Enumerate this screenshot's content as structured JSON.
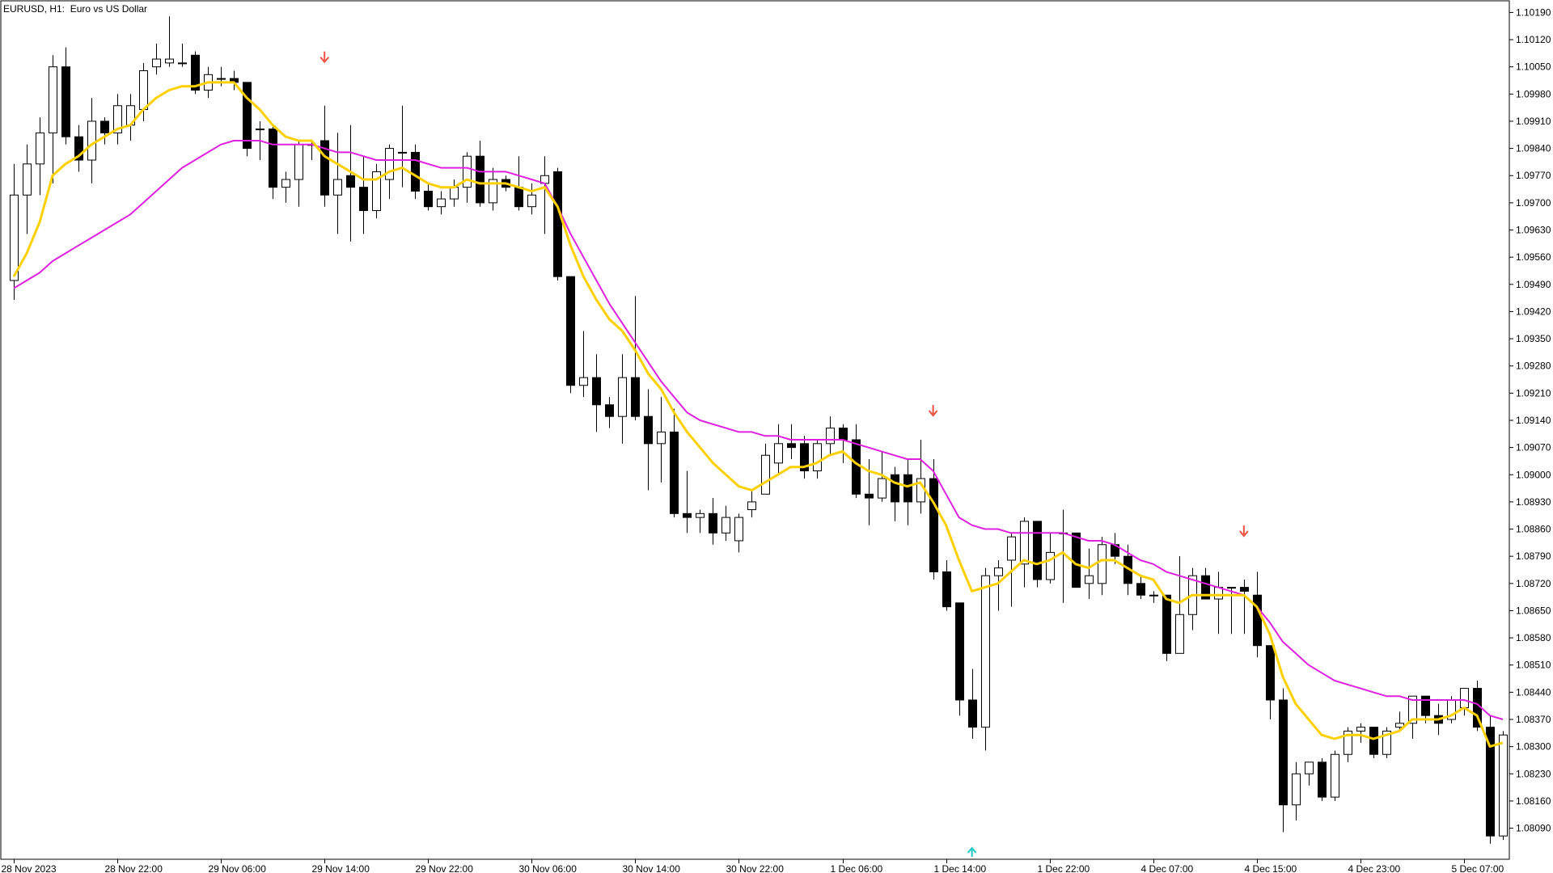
{
  "window": {
    "symbol": "EURUSD, H1:",
    "description": "Euro vs US Dollar"
  },
  "colors": {
    "background": "#ffffff",
    "frame": "#000000",
    "bull_body": "#ffffff",
    "bear_body": "#000000",
    "ma_fast": "#FFD000",
    "ma_slow": "#E020E0",
    "arrow_down": "#F05040",
    "arrow_up": "#20C8C8"
  },
  "chart_data": {
    "type": "candlestick",
    "title": "",
    "ylim": [
      1.0801,
      1.1022
    ],
    "y_ticks": [
      "1.10190",
      "1.10120",
      "1.10050",
      "1.09980",
      "1.09910",
      "1.09840",
      "1.09770",
      "1.09700",
      "1.09630",
      "1.09560",
      "1.09490",
      "1.09420",
      "1.09350",
      "1.09280",
      "1.09210",
      "1.09140",
      "1.09070",
      "1.09000",
      "1.08930",
      "1.08860",
      "1.08790",
      "1.08720",
      "1.08650",
      "1.08580",
      "1.08510",
      "1.08440",
      "1.08370",
      "1.08300",
      "1.08230",
      "1.08160",
      "1.08090"
    ],
    "x_ticks": [
      {
        "index": 0,
        "label": "28 Nov 2023"
      },
      {
        "index": 8,
        "label": "28 Nov 22:00"
      },
      {
        "index": 16,
        "label": "29 Nov 06:00"
      },
      {
        "index": 24,
        "label": "29 Nov 14:00"
      },
      {
        "index": 32,
        "label": "29 Nov 22:00"
      },
      {
        "index": 40,
        "label": "30 Nov 06:00"
      },
      {
        "index": 48,
        "label": "30 Nov 14:00"
      },
      {
        "index": 56,
        "label": "30 Nov 22:00"
      },
      {
        "index": 64,
        "label": "1 Dec 06:00"
      },
      {
        "index": 72,
        "label": "1 Dec 14:00"
      },
      {
        "index": 80,
        "label": "1 Dec 22:00"
      },
      {
        "index": 88,
        "label": "4 Dec 07:00"
      },
      {
        "index": 96,
        "label": "4 Dec 15:00"
      },
      {
        "index": 104,
        "label": "4 Dec 23:00"
      },
      {
        "index": 112,
        "label": "5 Dec 07:00"
      }
    ],
    "candles": [
      [
        1.095,
        1.098,
        1.0945,
        1.0972
      ],
      [
        1.0972,
        1.0985,
        1.0962,
        1.098
      ],
      [
        1.098,
        1.0992,
        1.0972,
        1.0988
      ],
      [
        1.0988,
        1.1008,
        1.0975,
        1.1005
      ],
      [
        1.1005,
        1.101,
        1.0985,
        1.0987
      ],
      [
        1.0987,
        1.099,
        1.0978,
        1.0981
      ],
      [
        1.0981,
        1.0997,
        1.0975,
        1.0991
      ],
      [
        1.0991,
        1.0992,
        1.0985,
        1.0988
      ],
      [
        1.0988,
        1.0998,
        1.0985,
        1.0995
      ],
      [
        1.099,
        1.0998,
        1.0986,
        1.0995
      ],
      [
        1.0994,
        1.1006,
        1.0991,
        1.1004
      ],
      [
        1.1005,
        1.1011,
        1.1003,
        1.1007
      ],
      [
        1.1006,
        1.1018,
        1.1005,
        1.1007
      ],
      [
        1.1006,
        1.1011,
        1.1005,
        1.1006
      ],
      [
        1.1008,
        1.1009,
        1.0998,
        1.0999
      ],
      [
        1.0999,
        1.1005,
        1.0997,
        1.1003
      ],
      [
        1.1002,
        1.1005,
        1.1,
        1.1002
      ],
      [
        1.1002,
        1.1004,
        1.0999,
        1.1001
      ],
      [
        1.1001,
        1.1001,
        1.0982,
        1.0984
      ],
      [
        1.0989,
        1.0991,
        1.0981,
        1.0989
      ],
      [
        1.0989,
        1.099,
        1.0971,
        1.0974
      ],
      [
        1.0974,
        1.0978,
        1.097,
        1.0976
      ],
      [
        1.0976,
        1.0986,
        1.0969,
        1.0985
      ],
      [
        1.0985,
        1.0986,
        1.0981,
        1.0985
      ],
      [
        1.0986,
        1.0995,
        1.0969,
        1.0972
      ],
      [
        1.0972,
        1.0988,
        1.0962,
        1.0976
      ],
      [
        1.0977,
        1.099,
        1.096,
        1.0974
      ],
      [
        1.0974,
        1.0982,
        1.0962,
        1.0968
      ],
      [
        1.0968,
        1.098,
        1.0966,
        1.0978
      ],
      [
        1.0976,
        1.0985,
        1.0971,
        1.0984
      ],
      [
        1.0983,
        1.0995,
        1.0974,
        1.0983
      ],
      [
        1.0983,
        1.0985,
        1.0971,
        1.0973
      ],
      [
        1.0973,
        1.0975,
        1.0968,
        1.0969
      ],
      [
        1.0969,
        1.0973,
        1.0967,
        1.0971
      ],
      [
        1.0971,
        1.0976,
        1.0969,
        1.0974
      ],
      [
        1.0974,
        1.0983,
        1.097,
        1.0982
      ],
      [
        1.0982,
        1.0986,
        1.0969,
        1.097
      ],
      [
        1.097,
        1.0979,
        1.0968,
        1.0976
      ],
      [
        1.0976,
        1.0977,
        1.0973,
        1.0974
      ],
      [
        1.0974,
        1.0982,
        1.0968,
        1.0969
      ],
      [
        1.0969,
        1.0975,
        1.0967,
        1.0972
      ],
      [
        1.0975,
        1.0982,
        1.0962,
        1.0977
      ],
      [
        1.0978,
        1.0979,
        1.095,
        1.0951
      ],
      [
        1.0951,
        1.0951,
        1.0921,
        1.0923
      ],
      [
        1.0923,
        1.0937,
        1.092,
        1.0925
      ],
      [
        1.0925,
        1.0931,
        1.0911,
        1.0918
      ],
      [
        1.0918,
        1.092,
        1.0912,
        1.0915
      ],
      [
        1.0915,
        1.0931,
        1.0908,
        1.0925
      ],
      [
        1.0925,
        1.0946,
        1.0914,
        1.0915
      ],
      [
        1.0915,
        1.0922,
        1.0896,
        1.0908
      ],
      [
        1.0908,
        1.092,
        1.0898,
        1.0911
      ],
      [
        1.0911,
        1.0917,
        1.0889,
        1.089
      ],
      [
        1.089,
        1.0901,
        1.0885,
        1.0889
      ],
      [
        1.0889,
        1.0891,
        1.0885,
        1.089
      ],
      [
        1.089,
        1.0894,
        1.0882,
        1.0885
      ],
      [
        1.0885,
        1.0892,
        1.0883,
        1.0889
      ],
      [
        1.0883,
        1.089,
        1.088,
        1.0889
      ],
      [
        1.0891,
        1.0896,
        1.0889,
        1.0893
      ],
      [
        1.0895,
        1.0908,
        1.0895,
        1.0905
      ],
      [
        1.0903,
        1.0913,
        1.09,
        1.0908
      ],
      [
        1.0908,
        1.0913,
        1.0904,
        1.0907
      ],
      [
        1.0908,
        1.091,
        1.0899,
        1.0901
      ],
      [
        1.0901,
        1.0909,
        1.0899,
        1.0908
      ],
      [
        1.0908,
        1.0915,
        1.0905,
        1.0912
      ],
      [
        1.0912,
        1.0913,
        1.0903,
        1.0909
      ],
      [
        1.0909,
        1.0913,
        1.0894,
        1.0895
      ],
      [
        1.0895,
        1.0904,
        1.0887,
        1.0894
      ],
      [
        1.0894,
        1.0906,
        1.0893,
        1.0899
      ],
      [
        1.09,
        1.0902,
        1.0888,
        1.0893
      ],
      [
        1.09,
        1.0904,
        1.0887,
        1.0893
      ],
      [
        1.0893,
        1.0909,
        1.089,
        1.0899
      ],
      [
        1.0899,
        1.0904,
        1.0873,
        1.0875
      ],
      [
        1.0875,
        1.0878,
        1.0865,
        1.0866
      ],
      [
        1.0867,
        1.0867,
        1.0838,
        1.0842
      ],
      [
        1.0842,
        1.085,
        1.0832,
        1.0835
      ],
      [
        1.0835,
        1.0876,
        1.0829,
        1.0874
      ],
      [
        1.0874,
        1.0878,
        1.0865,
        1.0876
      ],
      [
        1.0878,
        1.0885,
        1.0866,
        1.0884
      ],
      [
        1.0877,
        1.0889,
        1.0871,
        1.0888
      ],
      [
        1.0888,
        1.0888,
        1.0871,
        1.0873
      ],
      [
        1.0873,
        1.0885,
        1.0872,
        1.088
      ],
      [
        1.0885,
        1.0891,
        1.0867,
        1.0885
      ],
      [
        1.0885,
        1.0885,
        1.0871,
        1.0871
      ],
      [
        1.0872,
        1.0881,
        1.0868,
        1.0874
      ],
      [
        1.0872,
        1.0884,
        1.0869,
        1.0882
      ],
      [
        1.0882,
        1.0885,
        1.0877,
        1.0879
      ],
      [
        1.0879,
        1.0882,
        1.0869,
        1.0872
      ],
      [
        1.0872,
        1.0874,
        1.0868,
        1.0869
      ],
      [
        1.0869,
        1.087,
        1.0867,
        1.0869
      ],
      [
        1.0869,
        1.0869,
        1.0852,
        1.0854
      ],
      [
        1.0854,
        1.0879,
        1.0854,
        1.0864
      ],
      [
        1.0864,
        1.0876,
        1.086,
        1.0874
      ],
      [
        1.0874,
        1.0876,
        1.0868,
        1.0868
      ],
      [
        1.0868,
        1.0875,
        1.0859,
        1.0871
      ],
      [
        1.0871,
        1.0871,
        1.0859,
        1.0871
      ],
      [
        1.0871,
        1.0873,
        1.0859,
        1.087
      ],
      [
        1.0869,
        1.0875,
        1.0853,
        1.0856
      ],
      [
        1.0856,
        1.0856,
        1.0837,
        1.0842
      ],
      [
        1.0842,
        1.0845,
        1.0808,
        1.0815
      ],
      [
        1.0815,
        1.0826,
        1.0811,
        1.0823
      ],
      [
        1.0823,
        1.0826,
        1.082,
        1.0826
      ],
      [
        1.0826,
        1.0827,
        1.0816,
        1.0817
      ],
      [
        1.0817,
        1.0829,
        1.0816,
        1.0828
      ],
      [
        1.0828,
        1.0835,
        1.0826,
        1.0834
      ],
      [
        1.0834,
        1.0836,
        1.0831,
        1.0835
      ],
      [
        1.0835,
        1.0835,
        1.0827,
        1.0828
      ],
      [
        1.0828,
        1.0835,
        1.0827,
        1.0834
      ],
      [
        1.0835,
        1.0839,
        1.0834,
        1.0836
      ],
      [
        1.0836,
        1.0843,
        1.0832,
        1.0843
      ],
      [
        1.0843,
        1.0843,
        1.0836,
        1.0838
      ],
      [
        1.0838,
        1.0841,
        1.0833,
        1.0836
      ],
      [
        1.0837,
        1.0843,
        1.0836,
        1.0842
      ],
      [
        1.084,
        1.0845,
        1.0838,
        1.0845
      ],
      [
        1.0845,
        1.0847,
        1.0834,
        1.0835
      ],
      [
        1.0835,
        1.0838,
        1.0805,
        1.0807
      ],
      [
        1.0807,
        1.0834,
        1.0806,
        1.0833
      ]
    ],
    "series": [
      {
        "values": [
          1.0951,
          1.0957,
          1.0965,
          1.0977,
          1.098,
          1.0982,
          1.0985,
          1.0987,
          1.0989,
          1.099,
          1.0994,
          1.0997,
          1.0999,
          1.1,
          1.1,
          1.1001,
          1.1001,
          1.1001,
          1.0997,
          1.0994,
          1.099,
          1.0987,
          1.0986,
          1.0986,
          1.0982,
          1.098,
          1.0978,
          1.0976,
          1.0976,
          1.0978,
          1.0979,
          1.0977,
          1.0975,
          1.0974,
          1.0974,
          1.0976,
          1.0975,
          1.0975,
          1.0975,
          1.0974,
          1.0973,
          1.0974,
          1.0969,
          1.0959,
          1.0951,
          1.0945,
          1.094,
          1.0937,
          1.0932,
          1.0926,
          1.0922,
          1.0916,
          1.0911,
          1.0907,
          1.0903,
          1.09,
          1.0897,
          1.0896,
          1.0898,
          1.09,
          1.0902,
          1.0902,
          1.0903,
          1.0905,
          1.0906,
          1.0903,
          1.0901,
          1.09,
          1.0898,
          1.0897,
          1.0898,
          1.0893,
          1.0887,
          1.0878,
          1.087,
          1.0871,
          1.0872,
          1.0875,
          1.0878,
          1.0877,
          1.0878,
          1.088,
          1.0877,
          1.0876,
          1.0878,
          1.0878,
          1.0876,
          1.0874,
          1.0873,
          1.0868,
          1.0867,
          1.0869,
          1.0869,
          1.0869,
          1.0869,
          1.0869,
          1.0866,
          1.0859,
          1.0848,
          1.0841,
          1.0837,
          1.0833,
          1.0832,
          1.0833,
          1.0833,
          1.0832,
          1.0833,
          1.0834,
          1.0837,
          1.0837,
          1.0837,
          1.0838,
          1.084,
          1.0838,
          1.083,
          1.0831
        ]
      },
      {
        "values": [
          1.0948,
          1.095,
          1.0952,
          1.0955,
          1.0957,
          1.0959,
          1.0961,
          1.0963,
          1.0965,
          1.0967,
          1.097,
          1.0973,
          1.0976,
          1.0979,
          1.0981,
          1.0983,
          1.0985,
          1.0986,
          1.0986,
          1.0986,
          1.0985,
          1.0985,
          1.0985,
          1.0985,
          1.0984,
          1.0983,
          1.0983,
          1.0982,
          1.0981,
          1.0981,
          1.0981,
          1.0981,
          1.098,
          1.0979,
          1.0979,
          1.0979,
          1.0978,
          1.0978,
          1.0978,
          1.0977,
          1.0976,
          1.0975,
          1.0969,
          1.0962,
          1.0956,
          1.095,
          1.0944,
          1.0939,
          1.0934,
          1.0929,
          1.0924,
          1.092,
          1.0916,
          1.0914,
          1.0913,
          1.0912,
          1.0911,
          1.0911,
          1.091,
          1.091,
          1.0909,
          1.0909,
          1.0909,
          1.0909,
          1.0909,
          1.0908,
          1.0907,
          1.0906,
          1.0905,
          1.0904,
          1.0904,
          1.0901,
          1.0895,
          1.0889,
          1.0887,
          1.0886,
          1.0886,
          1.0885,
          1.0885,
          1.0885,
          1.0885,
          1.0885,
          1.0884,
          1.0883,
          1.0883,
          1.0882,
          1.088,
          1.0878,
          1.0877,
          1.0875,
          1.0874,
          1.0873,
          1.0872,
          1.0871,
          1.087,
          1.0869,
          1.0866,
          1.0862,
          1.0857,
          1.0854,
          1.0851,
          1.0849,
          1.0847,
          1.0846,
          1.0845,
          1.0844,
          1.0843,
          1.0843,
          1.0842,
          1.0842,
          1.0842,
          1.0842,
          1.0842,
          1.0841,
          1.0838,
          1.0837
        ]
      }
    ],
    "signals": [
      {
        "index": 24,
        "direction": "down"
      },
      {
        "index": 71,
        "direction": "down"
      },
      {
        "index": 74,
        "direction": "up"
      },
      {
        "index": 95,
        "direction": "down"
      }
    ]
  }
}
